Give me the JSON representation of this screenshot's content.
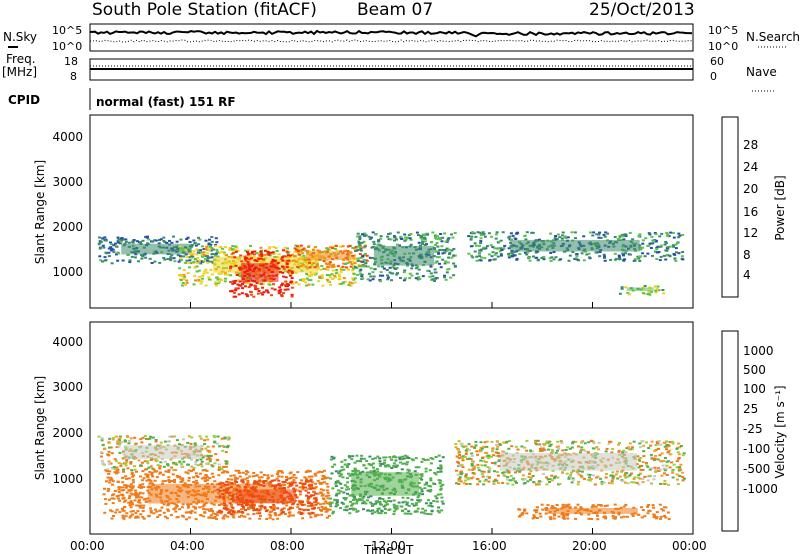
{
  "header": {
    "station": "South Pole Station (fitACF)",
    "beam": "Beam 07",
    "date": "25/Oct/2013"
  },
  "noise_panel": {
    "left_label": "N.Sky",
    "left_ticks": [
      "10^5",
      "10^0"
    ],
    "right_label": "N.Search",
    "right_ticks": [
      "10^5",
      "10^0"
    ]
  },
  "freq_panel": {
    "left_label_line1": "Freq.",
    "left_label_line2": "[MHz]",
    "left_ticks": [
      "18",
      "8"
    ],
    "right_label": "Nave",
    "right_ticks": [
      "60",
      "0"
    ]
  },
  "cpid": {
    "label": "CPID",
    "value": "normal (fast) 151 RF"
  },
  "axes": {
    "ylabel": "Slant Range [km]",
    "xlabel": "Time UT",
    "x_ticks": [
      "00:00",
      "04:00",
      "08:00",
      "12:00",
      "16:00",
      "20:00",
      "00:00"
    ],
    "y_ticks": [
      "1000",
      "2000",
      "3000",
      "4000"
    ]
  },
  "power_colorbar": {
    "label": "Power [dB]",
    "ticks": [
      "4",
      "8",
      "12",
      "16",
      "20",
      "24",
      "28"
    ],
    "colors": [
      "#1f3ff0",
      "#2850a8",
      "#3c8a6e",
      "#59c34a",
      "#f0d21e",
      "#f08c1a",
      "#f04a14",
      "#ee1a10"
    ]
  },
  "velocity_colorbar": {
    "label": "Velocity [m s⁻¹]",
    "ticks": [
      "1000",
      "500",
      "100",
      "25",
      "-25",
      "-100",
      "-500",
      "-1000"
    ],
    "colors": [
      "#2040c0",
      "#3c8a6e",
      "#52b04a",
      "#9ed040",
      "#c8c8c0",
      "#f0a030",
      "#f07a18",
      "#ee4a14",
      "#ee1a10"
    ]
  },
  "chart_data": {
    "type": "heatmap",
    "title": "South Pole Station (fitACF)   Beam 07   25/Oct/2013",
    "xlabel": "Time UT",
    "ylabel": "Slant Range [km]",
    "xlim": [
      0,
      24
    ],
    "ylim": [
      180,
      4500
    ],
    "grid": false,
    "panels": [
      {
        "name": "Power",
        "units": "dB",
        "color_range": [
          0,
          30
        ],
        "regions": [
          {
            "t_start": 0.3,
            "t_end": 5.0,
            "r_min": 1200,
            "r_max": 1800,
            "value": 8
          },
          {
            "t_start": 3.5,
            "t_end": 10.5,
            "r_min": 700,
            "r_max": 1600,
            "value": 16
          },
          {
            "t_start": 5.5,
            "t_end": 8.0,
            "r_min": 450,
            "r_max": 1500,
            "value": 28
          },
          {
            "t_start": 8.0,
            "t_end": 11.0,
            "r_min": 1100,
            "r_max": 1600,
            "value": 22
          },
          {
            "t_start": 10.5,
            "t_end": 14.5,
            "r_min": 800,
            "r_max": 1900,
            "value": 10
          },
          {
            "t_start": 15.0,
            "t_end": 23.6,
            "r_min": 1250,
            "r_max": 1900,
            "value": 9
          },
          {
            "t_start": 21.0,
            "t_end": 22.8,
            "r_min": 500,
            "r_max": 700,
            "value": 14
          }
        ]
      },
      {
        "name": "Velocity",
        "units": "m s-1",
        "color_range": [
          -1000,
          1000
        ],
        "regions": [
          {
            "t_start": 0.3,
            "t_end": 5.5,
            "r_min": 1500,
            "r_max": 2200,
            "value": 0
          },
          {
            "t_start": 0.5,
            "t_end": 9.5,
            "r_min": 500,
            "r_max": 1500,
            "value": -300
          },
          {
            "t_start": 5.0,
            "t_end": 9.0,
            "r_min": 600,
            "r_max": 1300,
            "value": -700
          },
          {
            "t_start": 9.5,
            "t_end": 14.0,
            "r_min": 600,
            "r_max": 1800,
            "value": 400
          },
          {
            "t_start": 14.5,
            "t_end": 23.6,
            "r_min": 1200,
            "r_max": 2100,
            "value": 0
          },
          {
            "t_start": 17.0,
            "t_end": 23.0,
            "r_min": 500,
            "r_max": 800,
            "value": -300
          }
        ]
      }
    ]
  }
}
